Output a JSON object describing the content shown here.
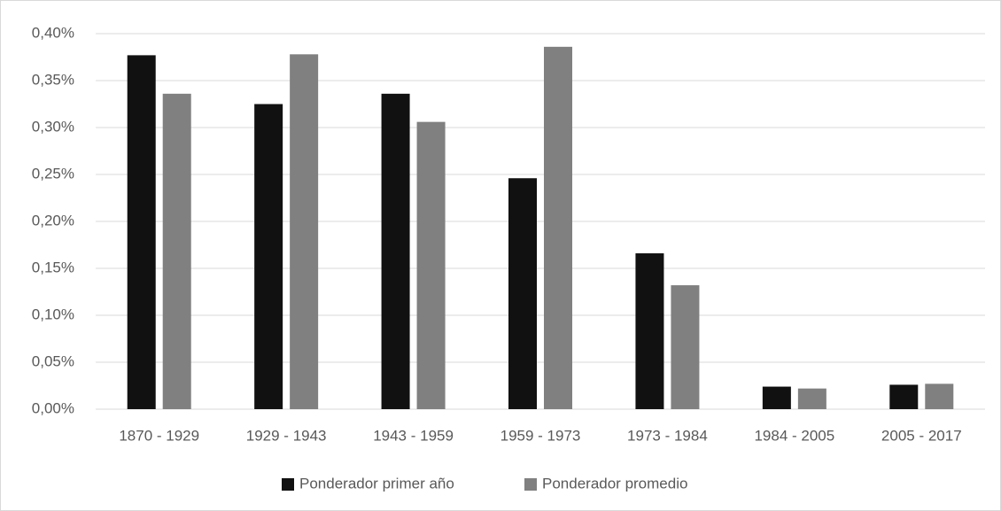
{
  "chart_data": {
    "type": "bar",
    "categories": [
      "1870 - 1929",
      "1929 - 1943",
      "1943 - 1959",
      "1959 - 1973",
      "1973 - 1984",
      "1984 - 2005",
      "2005 - 2017"
    ],
    "series": [
      {
        "name": "Ponderador primer año",
        "color": "#111111",
        "values": [
          0.377,
          0.325,
          0.336,
          0.246,
          0.166,
          0.024,
          0.026
        ]
      },
      {
        "name": "Ponderador promedio",
        "color": "#808080",
        "values": [
          0.336,
          0.378,
          0.306,
          0.386,
          0.132,
          0.022,
          0.027
        ]
      }
    ],
    "ylim": [
      0,
      0.4
    ],
    "yticks": [
      {
        "value": 0,
        "label": "0,00%"
      },
      {
        "value": 0.05,
        "label": "0,05%"
      },
      {
        "value": 0.1,
        "label": "0,10%"
      },
      {
        "value": 0.15,
        "label": "0,15%"
      },
      {
        "value": 0.2,
        "label": "0,20%"
      },
      {
        "value": 0.25,
        "label": "0,25%"
      },
      {
        "value": 0.3,
        "label": "0,30%"
      },
      {
        "value": 0.35,
        "label": "0,35%"
      },
      {
        "value": 0.4,
        "label": "0,40%"
      }
    ],
    "grid": true,
    "legend": "bottom"
  }
}
